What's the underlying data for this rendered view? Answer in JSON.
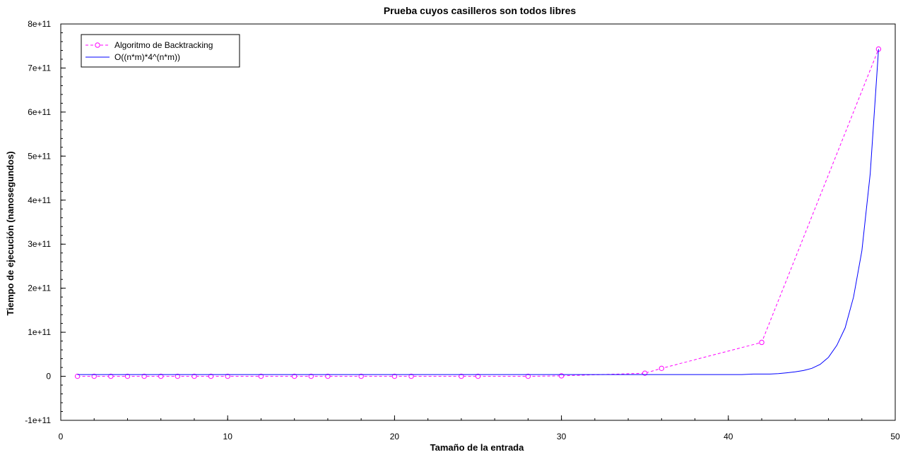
{
  "chart_data": {
    "type": "line",
    "title": "Prueba cuyos casilleros son todos libres",
    "xlabel": "Tamaño de la entrada",
    "ylabel": "Tiempo de ejecución (nanosegundos)",
    "xlim": [
      0,
      50
    ],
    "ylim": [
      -100000000000,
      800000000000
    ],
    "x_ticks": [
      0,
      10,
      20,
      30,
      40,
      50
    ],
    "x_tick_labels": [
      "0",
      "10",
      "20",
      "30",
      "40",
      "50"
    ],
    "y_ticks": [
      -100000000000,
      0,
      100000000000,
      200000000000,
      300000000000,
      400000000000,
      500000000000,
      600000000000,
      700000000000,
      800000000000
    ],
    "y_tick_labels": [
      "-1e+11",
      "0",
      "1e+11",
      "2e+11",
      "3e+11",
      "4e+11",
      "5e+11",
      "6e+11",
      "7e+11",
      "8e+11"
    ],
    "grid": false,
    "legend_position": "top-left",
    "series": [
      {
        "name": "Algoritmo de Backtracking",
        "color": "#ff00ff",
        "style": "dashed",
        "marker": "circle",
        "x": [
          1,
          2,
          3,
          4,
          5,
          6,
          7,
          8,
          9,
          10,
          12,
          14,
          15,
          16,
          18,
          20,
          21,
          24,
          25,
          28,
          30,
          35,
          36,
          42,
          49
        ],
        "y": [
          0,
          0,
          0,
          0,
          0,
          0,
          0,
          0,
          0,
          0,
          0,
          0,
          0,
          0,
          0,
          0,
          0,
          0,
          0,
          0,
          1000000000,
          7000000000,
          18000000000,
          77000000000,
          743000000000
        ]
      },
      {
        "name": "O((n*m)*4^(n*m))",
        "color": "#0000ff",
        "style": "solid",
        "marker": "none",
        "x": [
          1,
          5,
          10,
          15,
          20,
          25,
          30,
          35,
          40,
          40.8,
          41.5,
          42,
          42.5,
          43,
          43.5,
          44,
          44.5,
          45,
          45.5,
          46,
          46.5,
          47,
          47.5,
          48,
          48.5,
          49
        ],
        "y": [
          4000000000,
          4000000000,
          4000000000,
          4000000000,
          4000000000,
          4000000000,
          4000000000,
          4000000000,
          4000000000,
          4000000000,
          5000000000,
          5000000000,
          5000000000,
          6000000000,
          8000000000,
          10000000000,
          13000000000,
          18000000000,
          27000000000,
          43000000000,
          70000000000,
          110000000000,
          180000000000,
          285000000000,
          460000000000,
          743000000000
        ]
      }
    ]
  }
}
